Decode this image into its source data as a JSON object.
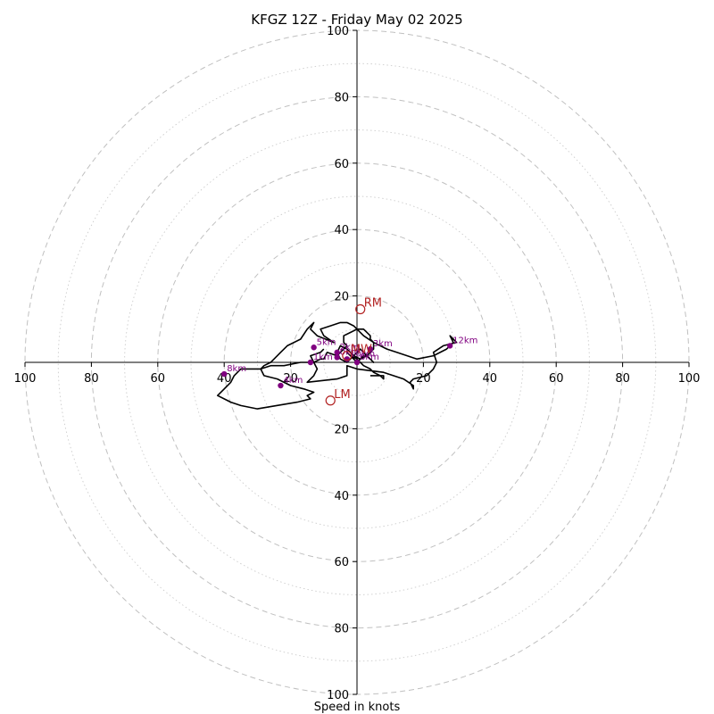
{
  "chart_data": {
    "type": "scatter",
    "title": "KFGZ 12Z - Friday May 02 2025",
    "xlabel": "Speed in knots",
    "ring_labels": [
      "20",
      "40",
      "60",
      "80",
      "100"
    ],
    "axis_range_knots": [
      -100,
      100
    ],
    "major_rings_knots": [
      20,
      40,
      60,
      80,
      100
    ],
    "minor_rings_knots": [
      10,
      30,
      50,
      70,
      90
    ],
    "grid": true,
    "colors": {
      "trace": "#000000",
      "height_marker": "#800080",
      "motion_marker": "#b22222",
      "grid": "#c0c0c0"
    },
    "hodograph_trace": {
      "u": [
        -10,
        -11,
        -14,
        -13,
        -12,
        -13,
        -15,
        -6,
        -3,
        -3,
        0,
        8,
        14,
        17,
        17,
        16,
        17,
        21,
        23,
        24,
        23,
        26,
        30,
        29,
        28,
        29,
        27,
        23,
        18,
        12,
        9,
        5,
        2,
        0,
        -1,
        -3,
        -5,
        -8,
        -11,
        -10,
        -7,
        -12,
        -14,
        -13,
        -15,
        -17,
        -21,
        -23,
        -25,
        -26,
        -28,
        -29,
        -32,
        -35,
        -37,
        -38,
        -40,
        -42,
        -38,
        -35,
        -30,
        -18,
        -14,
        -15,
        -13,
        -16,
        -20,
        -24,
        -28,
        -29,
        -26,
        -22,
        -17,
        -13,
        -11,
        -10,
        -9,
        -6,
        -5,
        -4,
        -3,
        -4,
        -4,
        -2,
        0,
        2,
        4,
        4,
        5,
        5,
        3,
        1,
        -1,
        -3,
        -5,
        -6,
        -5,
        -3,
        -1,
        0,
        1,
        2,
        3,
        4,
        5,
        4,
        3,
        2,
        1,
        0,
        -2,
        -3,
        -2,
        0,
        1,
        2,
        4,
        5,
        7,
        8,
        8,
        4,
        1
      ],
      "v": [
        4,
        3,
        2,
        0,
        -2,
        -4,
        -6,
        -5,
        -4,
        -1,
        -2,
        -3,
        -5,
        -7,
        -8,
        -6,
        -5,
        -4,
        -2,
        0,
        3,
        5,
        6,
        7,
        8,
        6,
        4,
        2,
        1,
        3,
        4,
        6,
        8,
        10,
        11,
        12,
        12,
        11,
        10,
        8,
        6,
        8,
        10,
        12,
        10,
        7,
        5,
        3,
        1,
        0,
        -1,
        -2,
        -2,
        -2,
        -4,
        -6,
        -8,
        -10,
        -12,
        -13,
        -14,
        -12,
        -11,
        -10,
        -9,
        -8,
        -7,
        -5,
        -4,
        -2,
        -1,
        -1,
        0,
        0,
        1,
        1,
        3,
        2,
        3,
        4,
        5,
        6,
        8,
        9,
        10,
        10,
        8,
        7,
        6,
        4,
        2,
        1,
        2,
        4,
        5,
        3,
        1,
        0,
        2,
        3,
        4,
        3,
        2,
        1,
        0,
        1,
        2,
        2,
        1,
        0,
        2,
        3,
        2,
        1,
        0,
        -1,
        -2,
        -3,
        -4,
        -5,
        -4,
        -4
      ]
    },
    "height_markers": [
      {
        "label": "0km",
        "u": -6,
        "v": 1.5
      },
      {
        "label": "1km",
        "u": -14,
        "v": 0
      },
      {
        "label": "2km",
        "u": -6,
        "v": 3
      },
      {
        "label": "3km",
        "u": 4,
        "v": 4
      },
      {
        "label": "4km",
        "u": -23,
        "v": -7
      },
      {
        "label": "5km",
        "u": -13,
        "v": 4.5
      },
      {
        "label": "6km",
        "u": 0,
        "v": 0
      },
      {
        "label": "8km",
        "u": -40,
        "v": -3.5
      },
      {
        "label": "10km",
        "u": -3,
        "v": 1
      },
      {
        "label": "12km",
        "u": 28,
        "v": 5
      }
    ],
    "storm_motions": [
      {
        "label": "RM",
        "u": 1,
        "v": 16
      },
      {
        "label": "LM",
        "u": -8,
        "v": -11.5
      },
      {
        "label": "MW",
        "u": -3,
        "v": 2
      }
    ]
  }
}
